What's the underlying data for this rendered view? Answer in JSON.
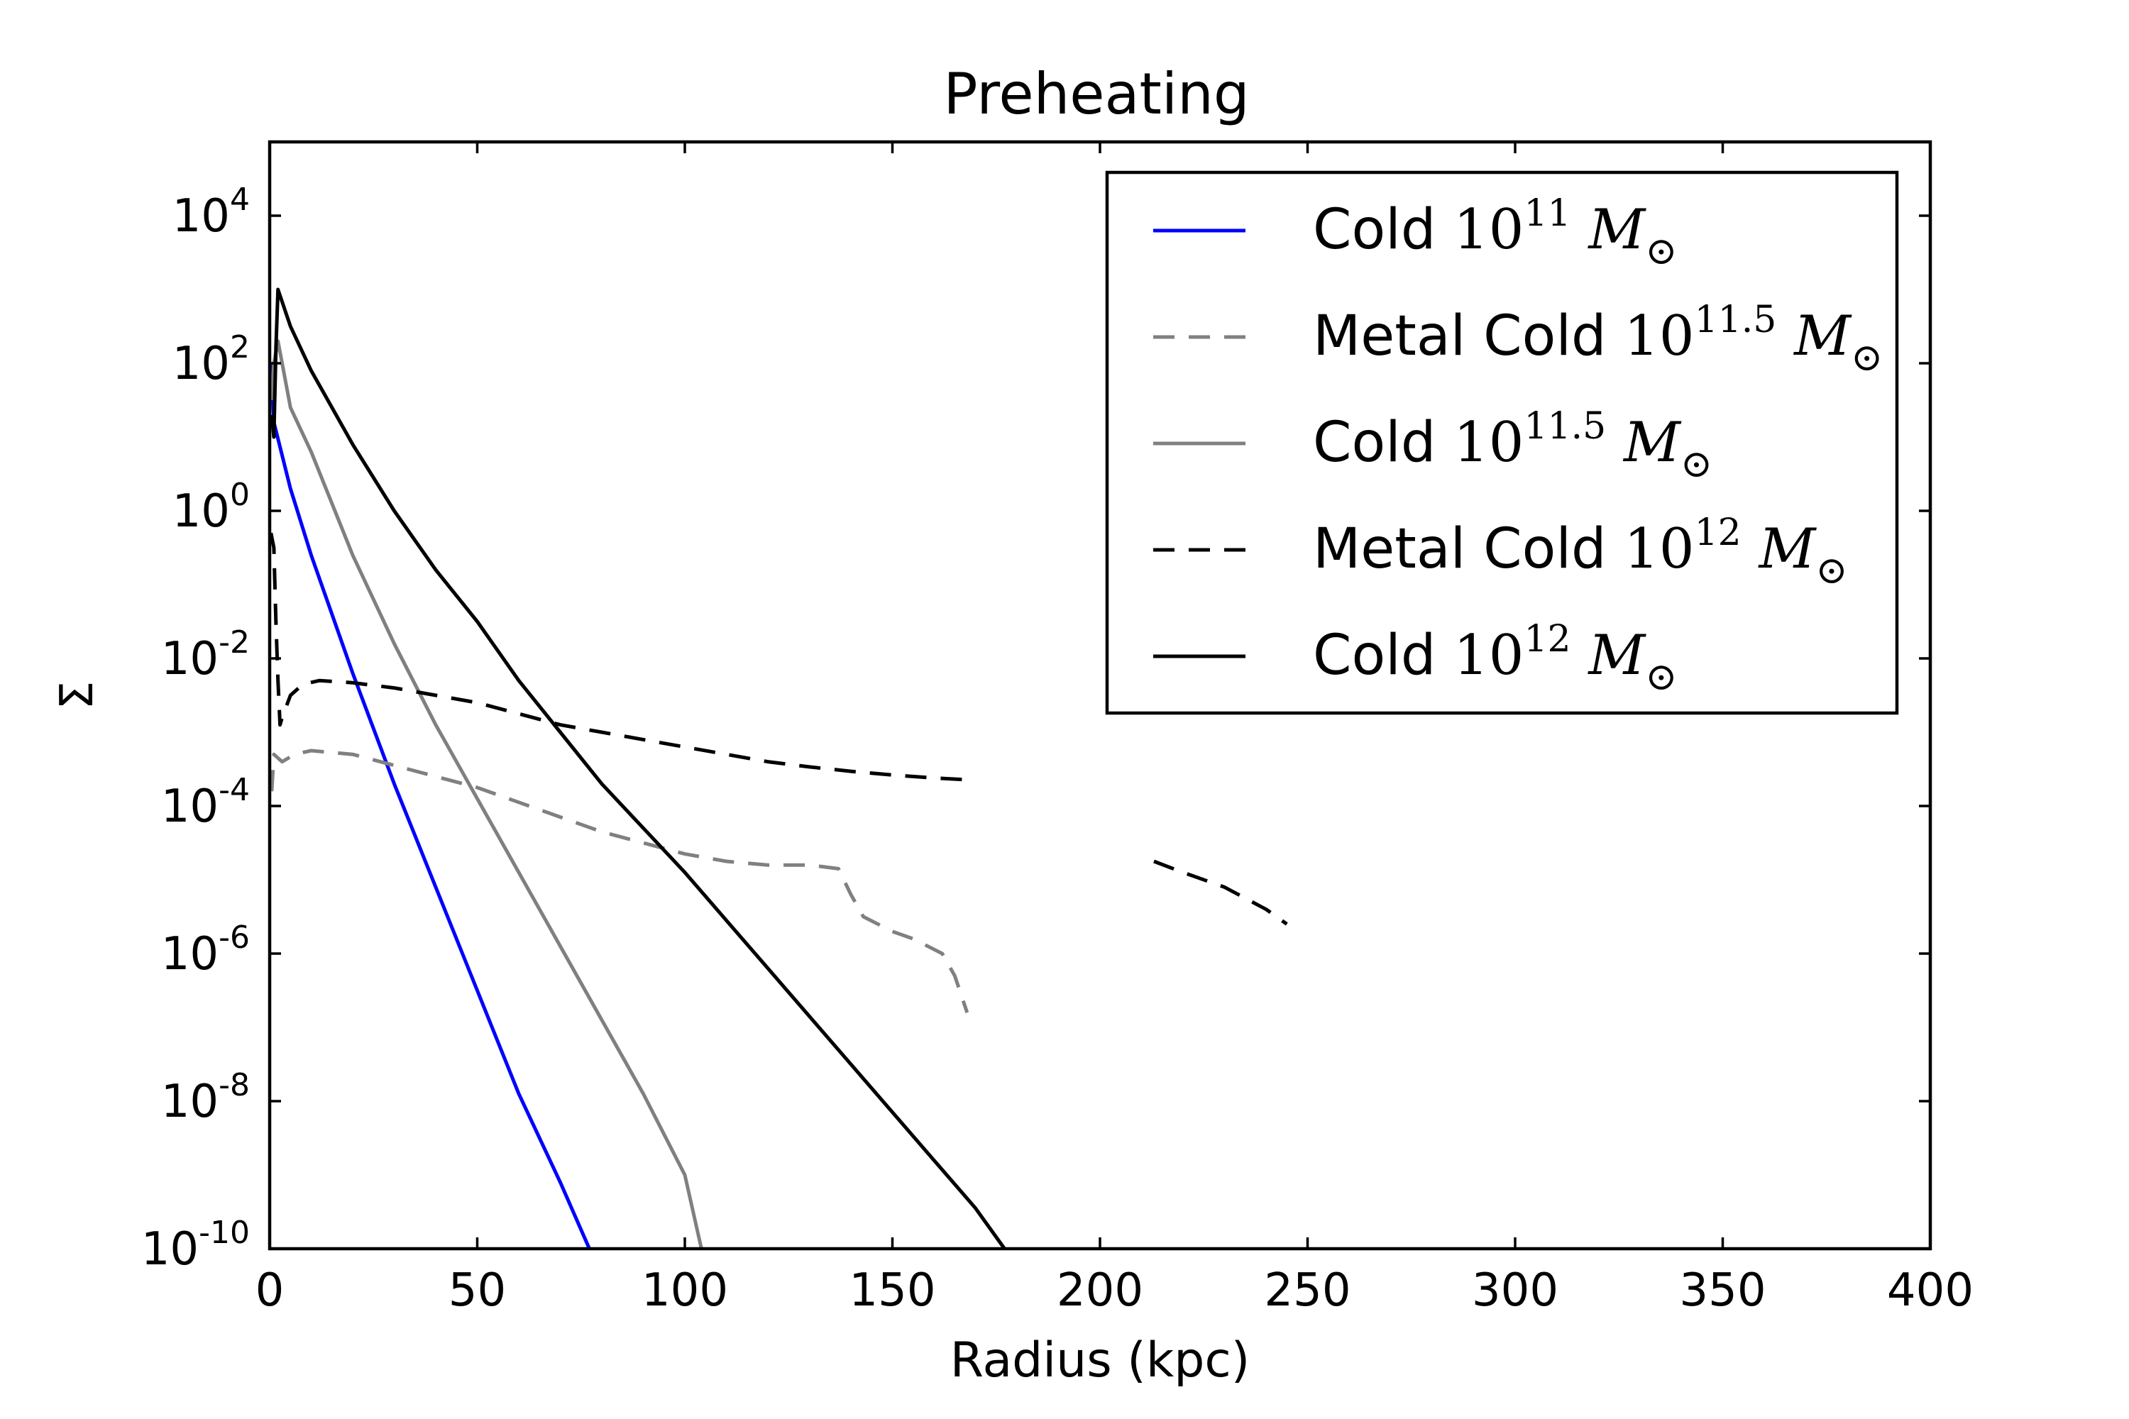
{
  "chart_data": {
    "type": "line",
    "title": "Preheating",
    "xlabel": "Radius (kpc)",
    "ylabel": "Σ",
    "xlim": [
      0,
      400
    ],
    "ylim_log10": [
      -10,
      5
    ],
    "y_scale": "log",
    "x_ticks": [
      "0",
      "50",
      "100",
      "150",
      "200",
      "250",
      "300",
      "350",
      "400"
    ],
    "y_ticks": [
      {
        "base": "10",
        "exp": "4"
      },
      {
        "base": "10",
        "exp": "2"
      },
      {
        "base": "10",
        "exp": "0"
      },
      {
        "base": "10",
        "exp": "-2"
      },
      {
        "base": "10",
        "exp": "-4"
      },
      {
        "base": "10",
        "exp": "-6"
      },
      {
        "base": "10",
        "exp": "-8"
      },
      {
        "base": "10",
        "exp": "-10"
      }
    ],
    "legend_position": "top-right",
    "series": [
      {
        "name": "Cold 10^11 M⊙",
        "legend_prefix": "Cold",
        "legend_exp": "11",
        "color": "#0000ff",
        "style": "solid",
        "x": [
          0.3,
          1,
          5,
          10,
          20,
          30,
          40,
          50,
          60,
          70,
          77
        ],
        "log10_y": [
          2.0,
          1.2,
          0.3,
          -0.6,
          -2.2,
          -3.7,
          -5.1,
          -6.5,
          -7.9,
          -9.1,
          -10.0
        ]
      },
      {
        "name": "Metal Cold 10^11.5 M⊙",
        "legend_prefix": "Metal Cold",
        "legend_exp": "11.5",
        "color": "#808080",
        "style": "dashed",
        "x": [
          0.5,
          1,
          3,
          6,
          10,
          20,
          30,
          40,
          50,
          60,
          70,
          80,
          90,
          100,
          110,
          120,
          130,
          137,
          140,
          143,
          150,
          155,
          162,
          165,
          168
        ],
        "log10_y": [
          -3.8,
          -3.3,
          -3.4,
          -3.3,
          -3.25,
          -3.3,
          -3.45,
          -3.6,
          -3.75,
          -3.95,
          -4.15,
          -4.35,
          -4.5,
          -4.65,
          -4.75,
          -4.8,
          -4.8,
          -4.85,
          -5.2,
          -5.5,
          -5.7,
          -5.8,
          -6.0,
          -6.3,
          -6.8
        ]
      },
      {
        "name": "Cold 10^11.5 M⊙",
        "legend_prefix": "Cold",
        "legend_exp": "11.5",
        "color": "#808080",
        "style": "solid",
        "x": [
          0.5,
          1,
          2,
          5,
          10,
          20,
          30,
          40,
          50,
          60,
          70,
          80,
          90,
          100,
          104
        ],
        "log10_y": [
          1.5,
          2.0,
          2.3,
          1.4,
          0.8,
          -0.6,
          -1.8,
          -2.9,
          -3.9,
          -4.9,
          -5.9,
          -6.9,
          -7.9,
          -9.0,
          -10.0
        ]
      },
      {
        "name": "Metal Cold 10^12 M⊙",
        "legend_prefix": "Metal Cold",
        "legend_exp": "12",
        "color": "#000000",
        "style": "dashed",
        "segments": [
          {
            "x": [
              0.3,
              1,
              1.5,
              2,
              2.5,
              3,
              5,
              8,
              12,
              20,
              30,
              40,
              50,
              60,
              70,
              80,
              90,
              100,
              110,
              120,
              130,
              140,
              150,
              160,
              170
            ],
            "log10_y": [
              -0.3,
              -0.5,
              -1.5,
              -2.3,
              -2.9,
              -2.8,
              -2.5,
              -2.35,
              -2.3,
              -2.33,
              -2.4,
              -2.5,
              -2.6,
              -2.75,
              -2.9,
              -3.0,
              -3.1,
              -3.2,
              -3.3,
              -3.4,
              -3.47,
              -3.53,
              -3.58,
              -3.62,
              -3.65
            ]
          },
          {
            "x": [
              213,
              220,
              230,
              240,
              245
            ],
            "log10_y": [
              -4.75,
              -4.9,
              -5.1,
              -5.4,
              -5.6
            ]
          }
        ]
      },
      {
        "name": "Cold 10^12 M⊙",
        "legend_prefix": "Cold",
        "legend_exp": "12",
        "color": "#000000",
        "style": "solid",
        "x": [
          0.5,
          1,
          1.5,
          2,
          5,
          10,
          20,
          30,
          40,
          50,
          60,
          70,
          80,
          90,
          100,
          110,
          120,
          130,
          140,
          150,
          160,
          170,
          177
        ],
        "log10_y": [
          1.3,
          1.0,
          2.2,
          3.0,
          2.5,
          1.9,
          0.9,
          0.0,
          -0.8,
          -1.5,
          -2.3,
          -3.0,
          -3.7,
          -4.3,
          -4.9,
          -5.55,
          -6.2,
          -6.85,
          -7.5,
          -8.15,
          -8.8,
          -9.45,
          -10.0
        ]
      }
    ]
  }
}
